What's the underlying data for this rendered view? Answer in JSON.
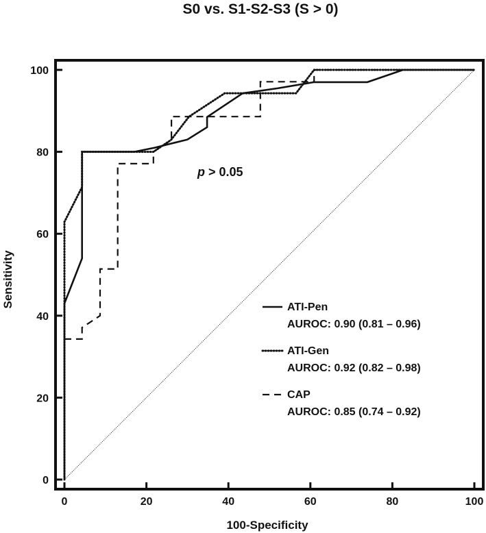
{
  "chart_data": {
    "type": "line",
    "title": "S0 vs. S1-S2-S3 (S > 0)",
    "xlabel": "100-Specificity",
    "ylabel": "Sensitivity",
    "xlim": [
      0,
      100
    ],
    "ylim": [
      0,
      100
    ],
    "xticks": [
      0,
      20,
      40,
      60,
      80,
      100
    ],
    "yticks": [
      0,
      20,
      40,
      60,
      80,
      100
    ],
    "grid": false,
    "legend_position": "bottom-right",
    "annotation": {
      "italic": "p",
      "rest": " > 0.05"
    },
    "series": [
      {
        "name": "ATI-Pen",
        "auroc": "AUROC: 0.90 (0.81 – 0.96)",
        "style": "solid",
        "points": [
          [
            0,
            0
          ],
          [
            0,
            43
          ],
          [
            4.3,
            54
          ],
          [
            4.3,
            80
          ],
          [
            17,
            80
          ],
          [
            22,
            81
          ],
          [
            26,
            82
          ],
          [
            30,
            83
          ],
          [
            34.8,
            86
          ],
          [
            34.8,
            88.5
          ],
          [
            43.5,
            94.3
          ],
          [
            52,
            95.5
          ],
          [
            60.9,
            97
          ],
          [
            73.9,
            97
          ],
          [
            82.6,
            100
          ],
          [
            100,
            100
          ]
        ]
      },
      {
        "name": "ATI-Gen",
        "auroc": "AUROC: 0.92 (0.82 – 0.98)",
        "style": "dotted",
        "points": [
          [
            0,
            0
          ],
          [
            0,
            62.9
          ],
          [
            4.3,
            71.4
          ],
          [
            4.3,
            80
          ],
          [
            13,
            80
          ],
          [
            21.7,
            80
          ],
          [
            26,
            82.9
          ],
          [
            30.4,
            88.6
          ],
          [
            39.1,
            94.3
          ],
          [
            56.5,
            94.3
          ],
          [
            60.9,
            100
          ],
          [
            100,
            100
          ]
        ]
      },
      {
        "name": "CAP",
        "auroc": "AUROC: 0.85 (0.74 – 0.92)",
        "style": "dashed",
        "points": [
          [
            0,
            34.3
          ],
          [
            4.3,
            34.3
          ],
          [
            4.3,
            37.1
          ],
          [
            8.7,
            40
          ],
          [
            8.7,
            51.4
          ],
          [
            13,
            51.4
          ],
          [
            13,
            77.1
          ],
          [
            21.7,
            77.1
          ],
          [
            21.7,
            80
          ],
          [
            26.1,
            82.9
          ],
          [
            26.1,
            88.6
          ],
          [
            47.8,
            88.6
          ],
          [
            47.8,
            97.1
          ],
          [
            60.9,
            97.1
          ],
          [
            60.9,
            100
          ],
          [
            100,
            100
          ]
        ]
      },
      {
        "name": "",
        "style": "diagonal-dotted",
        "points": [
          [
            0,
            0
          ],
          [
            100,
            100
          ]
        ]
      }
    ]
  }
}
